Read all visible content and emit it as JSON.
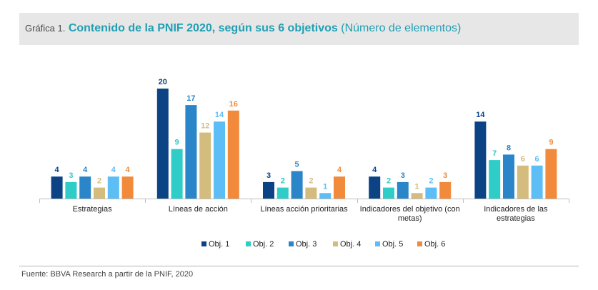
{
  "header": {
    "prefix": "Gráfica 1.",
    "title": "Contenido de la PNIF 2020, según sus 6 objetivos",
    "unit": "(Número de elementos)"
  },
  "source": "Fuente: BBVA Research a partir de la PNIF, 2020",
  "chart_data": {
    "type": "bar",
    "title": "Contenido de la PNIF 2020, según sus 6 objetivos",
    "subtitle": "(Número de elementos)",
    "xlabel": "",
    "ylabel": "",
    "ylim": [
      0,
      20
    ],
    "grid": false,
    "legend_position": "bottom",
    "categories": [
      [
        "Estrategias"
      ],
      [
        "Líneas de acción"
      ],
      [
        "Líneas acción prioritarias"
      ],
      [
        "Indicadores del objetivo (con",
        "metas)"
      ],
      [
        "Indicadores de las",
        "estrategias"
      ]
    ],
    "series": [
      {
        "name": "Obj. 1",
        "color": "#0b4385",
        "values": [
          4,
          20,
          3,
          4,
          14
        ]
      },
      {
        "name": "Obj. 2",
        "color": "#2ecdc7",
        "values": [
          3,
          9,
          2,
          2,
          7
        ]
      },
      {
        "name": "Obj. 3",
        "color": "#2a86c9",
        "values": [
          4,
          17,
          5,
          3,
          8
        ]
      },
      {
        "name": "Obj. 4",
        "color": "#d4bc7e",
        "values": [
          2,
          12,
          2,
          1,
          6
        ]
      },
      {
        "name": "Obj. 5",
        "color": "#5dbdf5",
        "values": [
          4,
          14,
          1,
          2,
          6
        ]
      },
      {
        "name": "Obj. 6",
        "color": "#f28a3c",
        "values": [
          4,
          16,
          4,
          3,
          9
        ]
      }
    ]
  }
}
